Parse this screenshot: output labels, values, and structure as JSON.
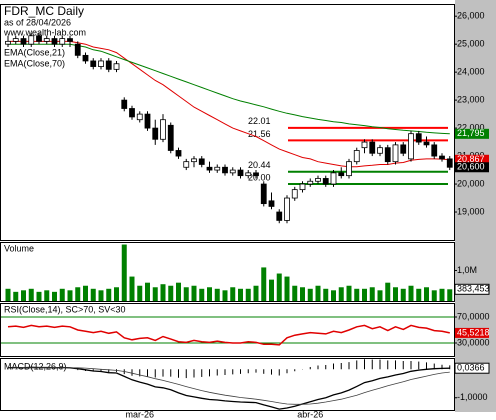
{
  "chart_data": [
    {
      "type": "candlestick",
      "title": "FDR_MC Daily",
      "subtitle": "as of 28/04/2026",
      "source": "www.wealth-lab.com",
      "categories": [
        null,
        null,
        null,
        null,
        null,
        null,
        null,
        null,
        null,
        null,
        null,
        null,
        null,
        null,
        null,
        null,
        null,
        "mar-26",
        null,
        null,
        null,
        null,
        null,
        null,
        null,
        null,
        null,
        null,
        null,
        null,
        null,
        null,
        null,
        null,
        null,
        null,
        null,
        null,
        null,
        "abr-26",
        null,
        null,
        null,
        null,
        null,
        null,
        null,
        null,
        null,
        null,
        null,
        null,
        null,
        null,
        null,
        null,
        null,
        null
      ],
      "open": [
        25.0,
        25.1,
        25.2,
        25.0,
        25.3,
        25.1,
        25.2,
        25.0,
        25.2,
        25.0,
        24.6,
        24.4,
        24.2,
        24.4,
        24.1,
        23.0,
        22.7,
        22.3,
        22.5,
        22.0,
        21.6,
        22.1,
        21.2,
        20.6,
        20.8,
        20.9,
        20.6,
        20.5,
        20.6,
        20.4,
        20.5,
        20.3,
        20.4,
        20.0,
        19.4,
        19.0,
        18.7,
        19.5,
        19.8,
        20.0,
        20.1,
        20.2,
        20.0,
        20.4,
        20.3,
        20.8,
        21.3,
        21.5,
        21.1,
        21.3,
        20.8,
        21.4,
        20.9,
        21.8,
        21.5,
        21.4,
        21.0,
        20.9
      ],
      "high": [
        25.3,
        25.3,
        25.3,
        25.4,
        25.4,
        25.3,
        25.3,
        25.3,
        25.3,
        25.1,
        24.7,
        24.5,
        24.5,
        24.5,
        24.4,
        23.1,
        22.8,
        22.6,
        22.6,
        22.3,
        22.5,
        22.2,
        21.3,
        20.9,
        21.0,
        21.0,
        20.8,
        20.7,
        20.7,
        20.6,
        20.6,
        20.5,
        20.5,
        20.1,
        19.7,
        19.1,
        19.6,
        19.9,
        20.1,
        20.2,
        20.3,
        20.3,
        20.5,
        20.6,
        20.9,
        21.3,
        21.6,
        21.6,
        21.4,
        21.4,
        21.5,
        21.5,
        21.9,
        21.9,
        21.7,
        21.5,
        21.1,
        21.0
      ],
      "low": [
        24.9,
        25.0,
        24.9,
        24.9,
        25.0,
        25.0,
        24.9,
        24.9,
        24.9,
        24.5,
        24.3,
        24.1,
        24.1,
        24.0,
        24.0,
        22.6,
        22.3,
        22.2,
        21.9,
        21.4,
        21.5,
        21.1,
        20.9,
        20.5,
        20.6,
        20.6,
        20.4,
        20.4,
        20.3,
        20.3,
        20.2,
        20.2,
        20.2,
        19.2,
        19.1,
        18.6,
        18.6,
        19.4,
        19.7,
        19.9,
        20.0,
        19.9,
        19.9,
        20.2,
        20.2,
        20.7,
        21.1,
        21.0,
        21.0,
        20.7,
        20.7,
        21.0,
        20.8,
        21.4,
        21.3,
        20.9,
        20.8,
        20.5
      ],
      "close": [
        25.1,
        25.2,
        25.0,
        25.3,
        25.1,
        25.2,
        25.0,
        25.2,
        25.1,
        24.6,
        24.4,
        24.2,
        24.4,
        24.1,
        24.3,
        22.7,
        22.4,
        22.5,
        22.0,
        21.6,
        22.3,
        21.2,
        21.0,
        20.8,
        20.9,
        20.7,
        20.5,
        20.6,
        20.4,
        20.5,
        20.3,
        20.4,
        20.3,
        19.3,
        19.2,
        18.7,
        19.5,
        19.8,
        20.0,
        20.1,
        20.2,
        20.0,
        20.4,
        20.3,
        20.8,
        21.2,
        21.5,
        21.1,
        21.3,
        20.8,
        21.4,
        21.1,
        21.8,
        21.5,
        21.4,
        21.0,
        20.9,
        20.6
      ],
      "close_label": "20,600",
      "ylim": [
        18,
        26.4
      ],
      "yticks": [
        {
          "value": 19,
          "label": "19,000"
        },
        {
          "value": 20,
          "label": "20,000"
        },
        {
          "value": 21,
          "label": "21,000"
        },
        {
          "value": 22,
          "label": "22,000"
        },
        {
          "value": 23,
          "label": "23,000"
        },
        {
          "value": 24,
          "label": "24,000"
        },
        {
          "value": 25,
          "label": "25,000"
        },
        {
          "value": 26,
          "label": "26,000"
        }
      ],
      "overlays": [
        {
          "name": "EMA(Close,21)",
          "color": "#e00000",
          "last_label": "20,867",
          "values": [
            25.1,
            25.1,
            25.1,
            25.1,
            25.1,
            25.1,
            25.1,
            25.1,
            25.1,
            25.05,
            25.0,
            24.9,
            24.85,
            24.8,
            24.7,
            24.5,
            24.3,
            24.1,
            23.9,
            23.7,
            23.55,
            23.35,
            23.15,
            22.95,
            22.75,
            22.6,
            22.45,
            22.3,
            22.15,
            22.0,
            21.9,
            21.8,
            21.7,
            21.55,
            21.4,
            21.25,
            21.15,
            21.05,
            20.95,
            20.9,
            20.8,
            20.75,
            20.7,
            20.65,
            20.62,
            20.62,
            20.65,
            20.67,
            20.7,
            20.7,
            20.75,
            20.77,
            20.85,
            20.88,
            20.9,
            20.9,
            20.89,
            20.867
          ]
        },
        {
          "name": "EMA(Close,70)",
          "color": "#008000",
          "last_label": "21,795",
          "values": [
            25.0,
            25.0,
            25.0,
            25.0,
            25.0,
            25.0,
            25.0,
            25.0,
            25.0,
            24.95,
            24.9,
            24.8,
            24.75,
            24.65,
            24.55,
            24.45,
            24.35,
            24.25,
            24.15,
            24.05,
            23.95,
            23.85,
            23.75,
            23.65,
            23.55,
            23.45,
            23.35,
            23.25,
            23.15,
            23.05,
            22.97,
            22.9,
            22.83,
            22.76,
            22.68,
            22.6,
            22.53,
            22.47,
            22.41,
            22.36,
            22.31,
            22.27,
            22.23,
            22.2,
            22.15,
            22.12,
            22.09,
            22.05,
            22.02,
            21.98,
            21.95,
            21.92,
            21.9,
            21.88,
            21.85,
            21.83,
            21.81,
            21.795
          ]
        }
      ],
      "levels": [
        {
          "value": 22.01,
          "label": "22.01",
          "color": "#ff0000"
        },
        {
          "value": 21.56,
          "label": "21.56",
          "color": "#ff0000"
        },
        {
          "value": 20.44,
          "label": "20.44",
          "color": "#008000"
        },
        {
          "value": 20,
          "label": "20.00",
          "color": "#008000"
        }
      ]
    },
    {
      "type": "bar",
      "title": "Volume",
      "color": "#008000",
      "last_label": "383,453",
      "values": [
        0.4,
        0.3,
        0.35,
        0.4,
        0.3,
        0.35,
        0.3,
        0.4,
        0.35,
        0.45,
        0.5,
        0.4,
        0.35,
        0.4,
        0.45,
        1.85,
        0.8,
        0.5,
        0.6,
        0.45,
        0.55,
        0.5,
        0.6,
        0.45,
        0.5,
        0.4,
        0.45,
        0.4,
        0.35,
        0.45,
        0.4,
        0.4,
        0.5,
        1.1,
        0.7,
        0.9,
        0.8,
        0.5,
        0.45,
        0.4,
        0.5,
        0.4,
        0.35,
        0.45,
        0.5,
        0.4,
        0.4,
        0.45,
        0.35,
        0.6,
        0.45,
        0.4,
        0.5,
        0.4,
        0.45,
        0.35,
        0.4,
        0.383453
      ],
      "ylim": [
        0,
        1.9
      ],
      "yticks": [
        {
          "value": 1,
          "label": "1,0M"
        }
      ]
    },
    {
      "type": "line",
      "title": "RSI(Close,14), SC>70, SV<30",
      "color": "#e00000",
      "last_label": "45,5218",
      "values": [
        55,
        56,
        54,
        57,
        55,
        56,
        54,
        56,
        55,
        50,
        48,
        46,
        48,
        45,
        47,
        38,
        35,
        37,
        38,
        34,
        40,
        36,
        32,
        31,
        34,
        32,
        31,
        33,
        31,
        30,
        30,
        32,
        31,
        28,
        28,
        27,
        38,
        42,
        44,
        46,
        45,
        44,
        48,
        46,
        50,
        55,
        57,
        52,
        55,
        49,
        55,
        51,
        57,
        54,
        53,
        49,
        48,
        45.5218
      ],
      "ylim": [
        10,
        90
      ],
      "yticks": [
        {
          "value": 30,
          "label": "30,0000"
        },
        {
          "value": 70,
          "label": "70,0000"
        }
      ],
      "band_color": "#008000"
    },
    {
      "type": "macd",
      "title": "MACD(12,26,9)",
      "last_label": "0,0366",
      "ylim": [
        -1.43,
        0.36
      ],
      "yticks": [
        {
          "value": -1,
          "label": "-1,0000"
        }
      ],
      "series": [
        {
          "color": "#000000",
          "values": [
            0.05,
            0.06,
            0.05,
            0.07,
            0.06,
            0.06,
            0.05,
            0.06,
            0.05,
            0.02,
            -0.02,
            -0.06,
            -0.08,
            -0.12,
            -0.13,
            -0.25,
            -0.37,
            -0.45,
            -0.52,
            -0.62,
            -0.65,
            -0.72,
            -0.83,
            -0.92,
            -0.97,
            -1.02,
            -1.06,
            -1.08,
            -1.11,
            -1.13,
            -1.15,
            -1.16,
            -1.17,
            -1.25,
            -1.32,
            -1.4,
            -1.36,
            -1.3,
            -1.22,
            -1.14,
            -1.06,
            -1.0,
            -0.9,
            -0.83,
            -0.73,
            -0.6,
            -0.47,
            -0.4,
            -0.32,
            -0.27,
            -0.2,
            -0.15,
            -0.07,
            -0.03,
            0.0,
            0.02,
            0.03,
            0.0366
          ]
        },
        {
          "color": "#404040",
          "values": [
            0.04,
            0.05,
            0.05,
            0.05,
            0.05,
            0.05,
            0.05,
            0.05,
            0.05,
            0.05,
            0.04,
            0.02,
            0.0,
            -0.02,
            -0.04,
            -0.08,
            -0.14,
            -0.2,
            -0.26,
            -0.33,
            -0.39,
            -0.46,
            -0.53,
            -0.61,
            -0.68,
            -0.75,
            -0.81,
            -0.86,
            -0.91,
            -0.95,
            -0.99,
            -1.02,
            -1.05,
            -1.09,
            -1.13,
            -1.18,
            -1.22,
            -1.23,
            -1.23,
            -1.22,
            -1.19,
            -1.15,
            -1.1,
            -1.05,
            -0.98,
            -0.91,
            -0.82,
            -0.74,
            -0.66,
            -0.58,
            -0.51,
            -0.44,
            -0.36,
            -0.3,
            -0.24,
            -0.18,
            -0.13,
            -0.1
          ]
        }
      ],
      "histogram": {
        "color": "#000000",
        "values": [
          0.01,
          0.01,
          0,
          0.02,
          0.01,
          0.01,
          0,
          0.01,
          0,
          -0.03,
          -0.06,
          -0.08,
          -0.08,
          -0.1,
          -0.09,
          -0.17,
          -0.23,
          -0.25,
          -0.26,
          -0.29,
          -0.26,
          -0.26,
          -0.3,
          -0.31,
          -0.29,
          -0.27,
          -0.25,
          -0.22,
          -0.2,
          -0.18,
          -0.16,
          -0.14,
          -0.12,
          -0.16,
          -0.19,
          -0.22,
          -0.14,
          -0.07,
          0.01,
          0.08,
          0.13,
          0.15,
          0.2,
          0.22,
          0.25,
          0.31,
          0.35,
          0.34,
          0.34,
          0.31,
          0.31,
          0.29,
          0.29,
          0.27,
          0.24,
          0.2,
          0.16,
          0.1366
        ]
      }
    }
  ]
}
